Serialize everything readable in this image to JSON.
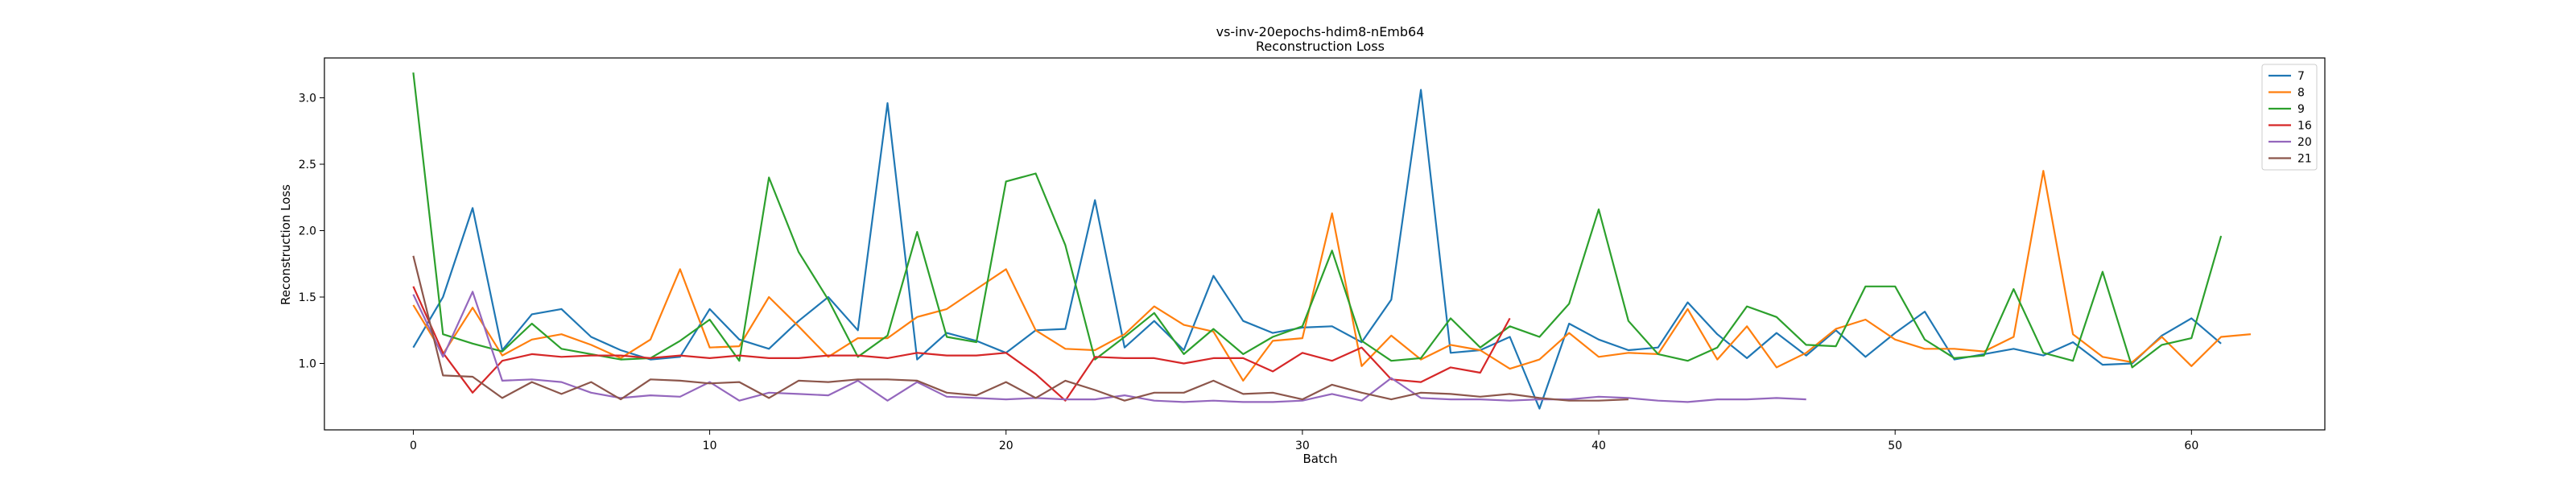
{
  "chart_data": {
    "type": "line",
    "title": "vs-inv-20epochs-hdim8-nEmb64",
    "subtitle": "Reconstruction Loss",
    "xlabel": "Batch",
    "ylabel": "Reconstruction Loss",
    "xlim": [
      -3,
      64.5
    ],
    "ylim": [
      0.5,
      3.3
    ],
    "xticks": [
      0,
      10,
      20,
      30,
      40,
      50,
      60
    ],
    "yticks": [
      1.0,
      1.5,
      2.0,
      2.5,
      3.0
    ],
    "ytick_labels": [
      "1.0",
      "1.5",
      "2.0",
      "2.5",
      "3.0"
    ],
    "grid": false,
    "legend_position": "top-right",
    "series": [
      {
        "name": "7",
        "color": "#1f77b4",
        "values": [
          1.12,
          1.5,
          2.17,
          1.1,
          1.37,
          1.41,
          1.2,
          1.1,
          1.03,
          1.05,
          1.41,
          1.18,
          1.11,
          1.32,
          1.5,
          1.25,
          2.96,
          1.03,
          1.23,
          1.17,
          1.08,
          1.25,
          1.26,
          2.23,
          1.12,
          1.32,
          1.1,
          1.66,
          1.32,
          1.23,
          1.27,
          1.28,
          1.16,
          1.48,
          3.06,
          1.08,
          1.1,
          1.2,
          0.66,
          1.3,
          1.18,
          1.1,
          1.12,
          1.46,
          1.22,
          1.04,
          1.23,
          1.06,
          1.25,
          1.05,
          1.23,
          1.39,
          1.03,
          1.07,
          1.11,
          1.06,
          1.16,
          0.99,
          1.0,
          1.21,
          1.34,
          1.15
        ]
      },
      {
        "name": "8",
        "color": "#ff7f0e",
        "values": [
          1.44,
          1.07,
          1.42,
          1.06,
          1.18,
          1.22,
          1.14,
          1.04,
          1.18,
          1.71,
          1.12,
          1.13,
          1.5,
          1.28,
          1.05,
          1.19,
          1.19,
          1.35,
          1.41,
          1.56,
          1.71,
          1.25,
          1.11,
          1.1,
          1.22,
          1.43,
          1.29,
          1.24,
          0.87,
          1.17,
          1.19,
          2.13,
          0.98,
          1.21,
          1.03,
          1.14,
          1.1,
          0.96,
          1.03,
          1.23,
          1.05,
          1.08,
          1.07,
          1.41,
          1.03,
          1.28,
          0.97,
          1.08,
          1.26,
          1.33,
          1.18,
          1.11,
          1.11,
          1.09,
          1.2,
          2.45,
          1.22,
          1.05,
          1.01,
          1.2,
          0.98,
          1.2,
          1.22
        ]
      },
      {
        "name": "9",
        "color": "#2ca02c",
        "values": [
          3.19,
          1.22,
          1.15,
          1.09,
          1.3,
          1.11,
          1.07,
          1.03,
          1.04,
          1.17,
          1.33,
          1.02,
          2.4,
          1.84,
          1.48,
          1.05,
          1.21,
          1.99,
          1.2,
          1.16,
          2.37,
          2.43,
          1.89,
          1.03,
          1.2,
          1.38,
          1.07,
          1.26,
          1.07,
          1.2,
          1.28,
          1.85,
          1.17,
          1.02,
          1.04,
          1.34,
          1.12,
          1.28,
          1.2,
          1.45,
          2.16,
          1.32,
          1.07,
          1.02,
          1.12,
          1.43,
          1.35,
          1.14,
          1.13,
          1.58,
          1.58,
          1.18,
          1.04,
          1.06,
          1.56,
          1.08,
          1.02,
          1.69,
          0.97,
          1.14,
          1.19,
          1.96
        ]
      },
      {
        "name": "16",
        "color": "#d62728",
        "values": [
          1.58,
          1.08,
          0.78,
          1.02,
          1.07,
          1.05,
          1.06,
          1.06,
          1.04,
          1.06,
          1.04,
          1.06,
          1.04,
          1.04,
          1.06,
          1.06,
          1.04,
          1.08,
          1.06,
          1.06,
          1.08,
          0.92,
          0.72,
          1.05,
          1.04,
          1.04,
          1.0,
          1.04,
          1.04,
          0.94,
          1.08,
          1.02,
          1.12,
          0.88,
          0.86,
          0.97,
          0.93,
          1.34
        ]
      },
      {
        "name": "20",
        "color": "#9467bd",
        "values": [
          1.52,
          1.05,
          1.54,
          0.87,
          0.88,
          0.86,
          0.78,
          0.74,
          0.76,
          0.75,
          0.86,
          0.72,
          0.78,
          0.77,
          0.76,
          0.87,
          0.72,
          0.86,
          0.75,
          0.74,
          0.73,
          0.74,
          0.73,
          0.73,
          0.76,
          0.72,
          0.71,
          0.72,
          0.71,
          0.71,
          0.72,
          0.77,
          0.72,
          0.89,
          0.74,
          0.73,
          0.73,
          0.72,
          0.73,
          0.73,
          0.75,
          0.74,
          0.72,
          0.71,
          0.73,
          0.73,
          0.74,
          0.73
        ]
      },
      {
        "name": "21",
        "color": "#8c564b",
        "values": [
          1.81,
          0.91,
          0.9,
          0.74,
          0.86,
          0.77,
          0.86,
          0.73,
          0.88,
          0.87,
          0.85,
          0.86,
          0.74,
          0.87,
          0.86,
          0.88,
          0.88,
          0.87,
          0.78,
          0.76,
          0.86,
          0.74,
          0.87,
          0.8,
          0.72,
          0.78,
          0.78,
          0.87,
          0.77,
          0.78,
          0.73,
          0.84,
          0.78,
          0.73,
          0.78,
          0.77,
          0.75,
          0.77,
          0.74,
          0.72,
          0.72,
          0.73
        ]
      }
    ]
  }
}
